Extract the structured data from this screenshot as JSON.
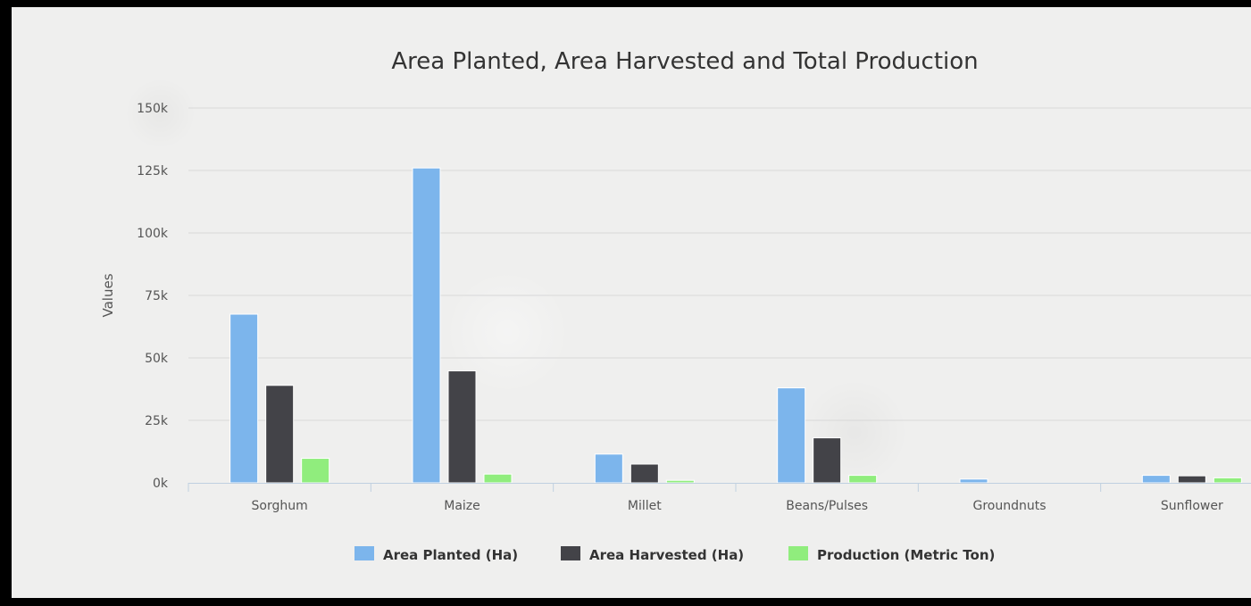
{
  "chart_data": {
    "type": "bar",
    "title": "Area Planted, Area Harvested and Total Production",
    "xlabel": "",
    "ylabel": "Values",
    "ylim": [
      0,
      150000
    ],
    "yticks": [
      {
        "value": 0,
        "label": "0k"
      },
      {
        "value": 25000,
        "label": "25k"
      },
      {
        "value": 50000,
        "label": "50k"
      },
      {
        "value": 75000,
        "label": "75k"
      },
      {
        "value": 100000,
        "label": "100k"
      },
      {
        "value": 125000,
        "label": "125k"
      },
      {
        "value": 150000,
        "label": "150k"
      }
    ],
    "categories": [
      "Sorghum",
      "Maize",
      "Millet",
      "Beans/Pulses",
      "Groundnuts",
      "Sunflower"
    ],
    "series": [
      {
        "name": "Area Planted (Ha)",
        "color": "#7cb5ec",
        "values": [
          67500,
          126000,
          11500,
          38000,
          1500,
          3000
        ]
      },
      {
        "name": "Area Harvested (Ha)",
        "color": "#434348",
        "values": [
          39000,
          44800,
          7500,
          18000,
          0,
          2800
        ]
      },
      {
        "name": "Production (Metric Ton)",
        "color": "#90ed7d",
        "values": [
          9800,
          3500,
          1000,
          3000,
          0,
          2000
        ]
      }
    ],
    "grid": true,
    "legend": "bottom-center"
  }
}
